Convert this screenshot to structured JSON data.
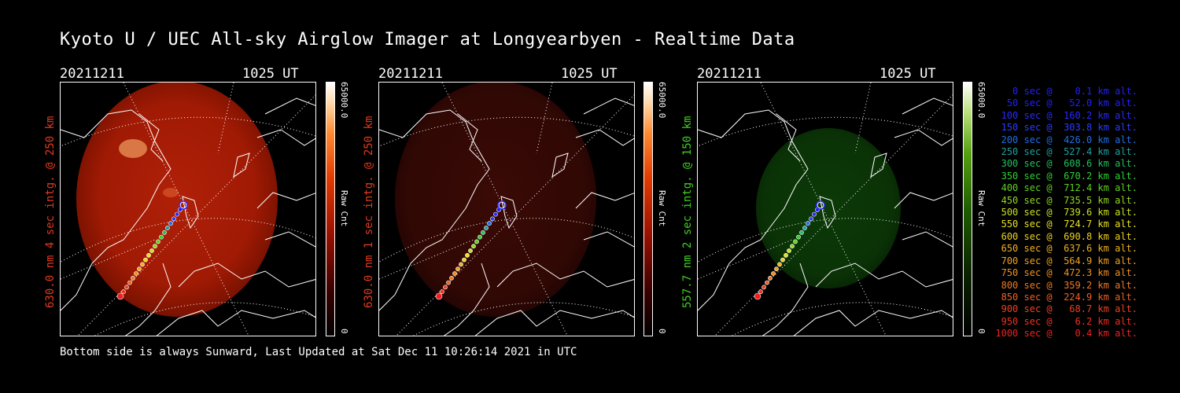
{
  "title": "Kyoto U / UEC All-sky Airglow Imager at Longyearbyen - Realtime Data",
  "footer": "Bottom side is always Sunward, Last Updated at Sat Dec 11 10:26:14 2021 in UTC",
  "panels": [
    {
      "date": "20211211",
      "time": "1025 UT",
      "side_label": "630.0 nm 4 sec intg. @ 250 km",
      "side_color": "#e03a1e",
      "cbar_max": "65000.0",
      "cbar_unit": "Raw Cnt",
      "cbar_min": "0",
      "tint": "red-bright"
    },
    {
      "date": "20211211",
      "time": "1025 UT",
      "side_label": "630.0 nm 1 sec intg. @ 250 km",
      "side_color": "#e03a1e",
      "cbar_max": "65000.0",
      "cbar_unit": "Raw Cnt",
      "cbar_min": "0",
      "tint": "red-dim"
    },
    {
      "date": "20211211",
      "time": "1025 UT",
      "side_label": "557.7 nm 2 sec intg. @ 150 km",
      "side_color": "#40d020",
      "cbar_max": "65000.0",
      "cbar_unit": "Raw Cnt",
      "cbar_min": "0",
      "tint": "green"
    }
  ],
  "legend": [
    {
      "text": "   0 sec @    0.1 km alt.",
      "color": "#2020ff"
    },
    {
      "text": "  50 sec @   52.0 km alt.",
      "color": "#2020ff"
    },
    {
      "text": " 100 sec @  160.2 km alt.",
      "color": "#2828ff"
    },
    {
      "text": " 150 sec @  303.8 km alt.",
      "color": "#2a3cff"
    },
    {
      "text": " 200 sec @  426.0 km alt.",
      "color": "#1f6fe8"
    },
    {
      "text": " 250 sec @  527.4 km alt.",
      "color": "#1fa0a0"
    },
    {
      "text": " 300 sec @  608.6 km alt.",
      "color": "#20c060"
    },
    {
      "text": " 350 sec @  670.2 km alt.",
      "color": "#30d030"
    },
    {
      "text": " 400 sec @  712.4 km alt.",
      "color": "#60d020"
    },
    {
      "text": " 450 sec @  735.5 km alt.",
      "color": "#90d820"
    },
    {
      "text": " 500 sec @  739.6 km alt.",
      "color": "#c8e020"
    },
    {
      "text": " 550 sec @  724.7 km alt.",
      "color": "#e8e020"
    },
    {
      "text": " 600 sec @  690.8 km alt.",
      "color": "#f0d020"
    },
    {
      "text": " 650 sec @  637.6 km alt.",
      "color": "#f0b020"
    },
    {
      "text": " 700 sec @  564.9 km alt.",
      "color": "#f0a020"
    },
    {
      "text": " 750 sec @  472.3 km alt.",
      "color": "#f09020"
    },
    {
      "text": " 800 sec @  359.2 km alt.",
      "color": "#f07820"
    },
    {
      "text": " 850 sec @  224.9 km alt.",
      "color": "#f06020"
    },
    {
      "text": " 900 sec @   68.7 km alt.",
      "color": "#f04020"
    },
    {
      "text": " 950 sec @    6.2 km alt.",
      "color": "#f03020"
    },
    {
      "text": "1000 sec @    0.4 km alt.",
      "color": "#f02020"
    }
  ]
}
